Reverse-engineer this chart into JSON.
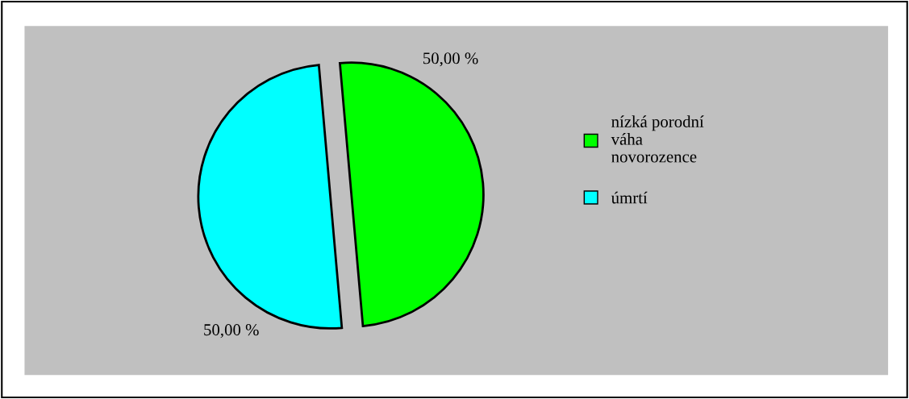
{
  "chart_data": {
    "type": "pie",
    "categories": [
      "nízká porodní váha novorozence",
      "úmrtí"
    ],
    "values": [
      50,
      50
    ],
    "colors": [
      "#00ff00",
      "#00ffff"
    ],
    "value_labels": [
      "50,00 %",
      "50,00 %"
    ],
    "legend": "right"
  }
}
